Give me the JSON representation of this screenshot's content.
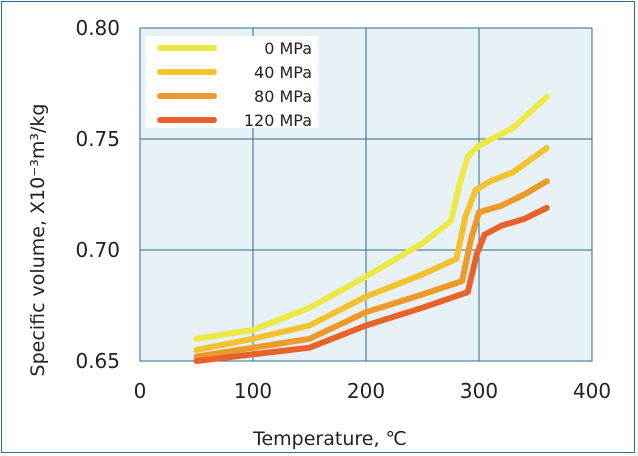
{
  "chart_data": {
    "type": "line",
    "xlabel": "Temperature, ℃",
    "ylabel": "Specific volume, X10⁻³m³/kg",
    "xlim": [
      0,
      400
    ],
    "ylim": [
      0.65,
      0.8
    ],
    "x_ticks": [
      "0",
      "100",
      "200",
      "300",
      "400"
    ],
    "y_ticks": [
      "0.65",
      "0.70",
      "0.75",
      "0.80"
    ],
    "grid": true,
    "legend_position": "top-left",
    "plot_background": "#e8f1f6",
    "grid_color": "#2a6f8a",
    "series": [
      {
        "name": "0 MPa",
        "color": "#ece845",
        "points": [
          [
            50,
            0.66
          ],
          [
            100,
            0.664
          ],
          [
            150,
            0.674
          ],
          [
            200,
            0.688
          ],
          [
            250,
            0.703
          ],
          [
            275,
            0.713
          ],
          [
            282,
            0.728
          ],
          [
            290,
            0.742
          ],
          [
            300,
            0.747
          ],
          [
            330,
            0.755
          ],
          [
            360,
            0.769
          ]
        ]
      },
      {
        "name": "40 MPa",
        "color": "#f2c231",
        "points": [
          [
            50,
            0.655
          ],
          [
            100,
            0.66
          ],
          [
            150,
            0.666
          ],
          [
            200,
            0.679
          ],
          [
            250,
            0.689
          ],
          [
            280,
            0.696
          ],
          [
            288,
            0.715
          ],
          [
            297,
            0.727
          ],
          [
            310,
            0.731
          ],
          [
            330,
            0.735
          ],
          [
            360,
            0.746
          ]
        ]
      },
      {
        "name": "80 MPa",
        "color": "#ee9a2a",
        "points": [
          [
            50,
            0.652
          ],
          [
            100,
            0.656
          ],
          [
            150,
            0.66
          ],
          [
            200,
            0.672
          ],
          [
            250,
            0.68
          ],
          [
            285,
            0.686
          ],
          [
            293,
            0.705
          ],
          [
            300,
            0.717
          ],
          [
            320,
            0.72
          ],
          [
            340,
            0.725
          ],
          [
            360,
            0.731
          ]
        ]
      },
      {
        "name": "120 MPa",
        "color": "#e8632a",
        "points": [
          [
            50,
            0.65
          ],
          [
            100,
            0.653
          ],
          [
            150,
            0.656
          ],
          [
            200,
            0.666
          ],
          [
            250,
            0.674
          ],
          [
            290,
            0.681
          ],
          [
            298,
            0.698
          ],
          [
            305,
            0.707
          ],
          [
            320,
            0.711
          ],
          [
            340,
            0.714
          ],
          [
            360,
            0.719
          ]
        ]
      }
    ]
  }
}
